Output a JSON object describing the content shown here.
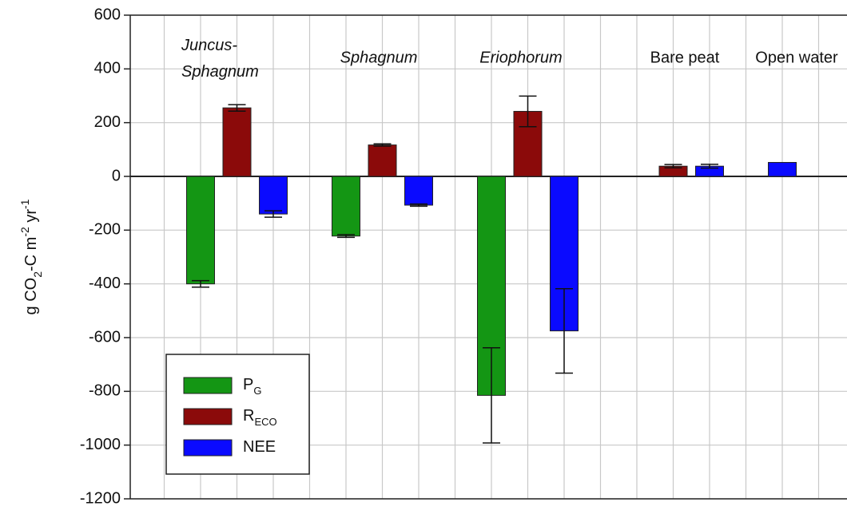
{
  "chart_data": {
    "type": "bar",
    "ylabel": [
      {
        "text": "g CO"
      },
      {
        "text": "2",
        "sub": true
      },
      {
        "text": "-C m"
      },
      {
        "text": "-2",
        "sup": true
      },
      {
        "text": " yr"
      },
      {
        "text": "-1",
        "sup": true
      }
    ],
    "categories": [
      "Juncus-Sphagnum",
      "Sphagnum",
      "Eriophorum",
      "Bare peat",
      "Open water"
    ],
    "category_italic": [
      true,
      true,
      true,
      false,
      false
    ],
    "series": [
      {
        "name": "P",
        "name_sub": "G",
        "color": "#149614",
        "values": [
          -400,
          -222,
          -815,
          null,
          null
        ],
        "errors": [
          12,
          5,
          177,
          null,
          null
        ]
      },
      {
        "name": "R",
        "name_sub": "ECO",
        "color": "#8b0a0a",
        "values": [
          255,
          117,
          242,
          38,
          null
        ],
        "errors": [
          12,
          4,
          57,
          6,
          null
        ]
      },
      {
        "name": "NEE",
        "color": "#0a0aff",
        "values": [
          -140,
          -107,
          -575,
          38,
          52
        ],
        "errors": [
          12,
          4,
          157,
          7,
          null
        ]
      }
    ],
    "ylim": [
      -1200,
      600
    ],
    "yticks": [
      -1200,
      -1000,
      -800,
      -600,
      -400,
      -200,
      0,
      200,
      400,
      600
    ],
    "grid": true
  }
}
